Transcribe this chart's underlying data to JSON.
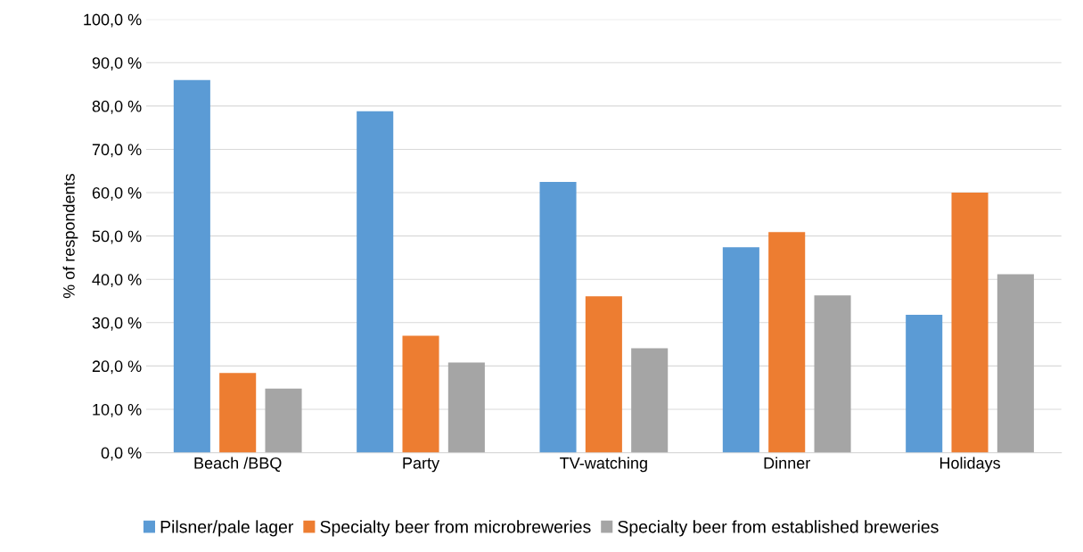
{
  "chart_data": {
    "type": "bar",
    "ylabel": "% of respondents",
    "categories": [
      "Beach /BBQ",
      "Party",
      "TV-watching",
      "Dinner",
      "Holidays"
    ],
    "series": [
      {
        "name": "Pilsner/pale lager",
        "color": "#5b9bd5",
        "values": [
          86.0,
          78.8,
          62.5,
          47.4,
          31.8
        ]
      },
      {
        "name": "Specialty beer from microbreweries",
        "color": "#ed7d31",
        "values": [
          18.4,
          27.0,
          36.1,
          50.9,
          60.0
        ]
      },
      {
        "name": "Specialty beer from established breweries",
        "color": "#a5a5a5",
        "values": [
          14.8,
          20.8,
          24.1,
          36.3,
          41.2
        ]
      }
    ],
    "ylim": [
      0,
      100
    ],
    "yticks": [
      {
        "value": 0,
        "label": "0,0 %"
      },
      {
        "value": 10,
        "label": "10,0 %"
      },
      {
        "value": 20,
        "label": "20,0 %"
      },
      {
        "value": 30,
        "label": "30,0 %"
      },
      {
        "value": 40,
        "label": "40,0 %"
      },
      {
        "value": 50,
        "label": "50,0 %"
      },
      {
        "value": 60,
        "label": "60,0 %"
      },
      {
        "value": 70,
        "label": "70,0 %"
      },
      {
        "value": 80,
        "label": "80,0 %"
      },
      {
        "value": 90,
        "label": "90,0 %"
      },
      {
        "value": 100,
        "label": "100,0 %"
      }
    ],
    "grid": "y",
    "legend": "bottom"
  }
}
